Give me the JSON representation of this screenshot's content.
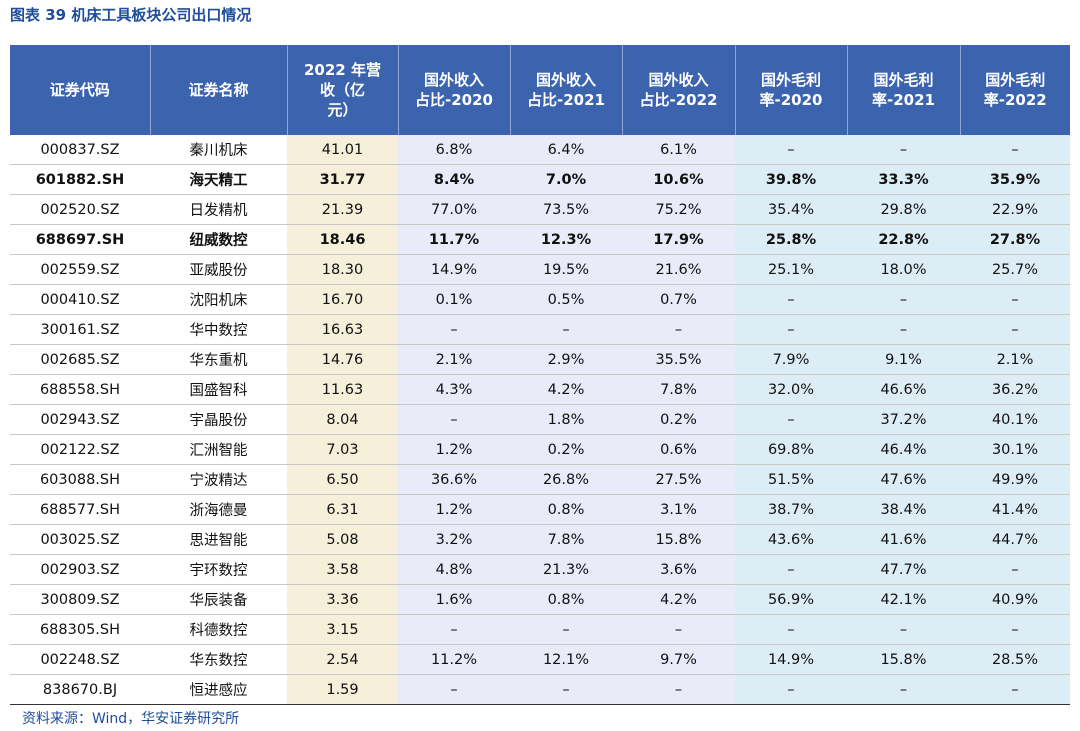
{
  "title": "图表 39  机床工具板块公司出口情况",
  "table": {
    "header": [
      [
        "证券代码"
      ],
      [
        "证券名称"
      ],
      [
        "2022 年营",
        "收（亿",
        "元）"
      ],
      [
        "国外收入",
        "占比-2020"
      ],
      [
        "国外收入",
        "占比-2021"
      ],
      [
        "国外收入",
        "占比-2022"
      ],
      [
        "国外毛利",
        "率-2020"
      ],
      [
        "国外毛利",
        "率-2021"
      ],
      [
        "国外毛利",
        "率-2022"
      ]
    ],
    "rows": [
      {
        "bold": false,
        "cells": [
          "000837.SZ",
          "秦川机床",
          "41.01",
          "6.8%",
          "6.4%",
          "6.1%",
          "–",
          "–",
          "–"
        ]
      },
      {
        "bold": true,
        "cells": [
          "601882.SH",
          "海天精工",
          "31.77",
          "8.4%",
          "7.0%",
          "10.6%",
          "39.8%",
          "33.3%",
          "35.9%"
        ]
      },
      {
        "bold": false,
        "cells": [
          "002520.SZ",
          "日发精机",
          "21.39",
          "77.0%",
          "73.5%",
          "75.2%",
          "35.4%",
          "29.8%",
          "22.9%"
        ]
      },
      {
        "bold": true,
        "cells": [
          "688697.SH",
          "纽威数控",
          "18.46",
          "11.7%",
          "12.3%",
          "17.9%",
          "25.8%",
          "22.8%",
          "27.8%"
        ]
      },
      {
        "bold": false,
        "cells": [
          "002559.SZ",
          "亚威股份",
          "18.30",
          "14.9%",
          "19.5%",
          "21.6%",
          "25.1%",
          "18.0%",
          "25.7%"
        ]
      },
      {
        "bold": false,
        "cells": [
          "000410.SZ",
          "沈阳机床",
          "16.70",
          "0.1%",
          "0.5%",
          "0.7%",
          "–",
          "–",
          "–"
        ]
      },
      {
        "bold": false,
        "cells": [
          "300161.SZ",
          "华中数控",
          "16.63",
          "–",
          "–",
          "–",
          "–",
          "–",
          "–"
        ]
      },
      {
        "bold": false,
        "cells": [
          "002685.SZ",
          "华东重机",
          "14.76",
          "2.1%",
          "2.9%",
          "35.5%",
          "7.9%",
          "9.1%",
          "2.1%"
        ]
      },
      {
        "bold": false,
        "cells": [
          "688558.SH",
          "国盛智科",
          "11.63",
          "4.3%",
          "4.2%",
          "7.8%",
          "32.0%",
          "46.6%",
          "36.2%"
        ]
      },
      {
        "bold": false,
        "cells": [
          "002943.SZ",
          "宇晶股份",
          "8.04",
          "–",
          "1.8%",
          "0.2%",
          "–",
          "37.2%",
          "40.1%"
        ]
      },
      {
        "bold": false,
        "cells": [
          "002122.SZ",
          "汇洲智能",
          "7.03",
          "1.2%",
          "0.2%",
          "0.6%",
          "69.8%",
          "46.4%",
          "30.1%"
        ]
      },
      {
        "bold": false,
        "cells": [
          "603088.SH",
          "宁波精达",
          "6.50",
          "36.6%",
          "26.8%",
          "27.5%",
          "51.5%",
          "47.6%",
          "49.9%"
        ]
      },
      {
        "bold": false,
        "cells": [
          "688577.SH",
          "浙海德曼",
          "6.31",
          "1.2%",
          "0.8%",
          "3.1%",
          "38.7%",
          "38.4%",
          "41.4%"
        ]
      },
      {
        "bold": false,
        "cells": [
          "003025.SZ",
          "思进智能",
          "5.08",
          "3.2%",
          "7.8%",
          "15.8%",
          "43.6%",
          "41.6%",
          "44.7%"
        ]
      },
      {
        "bold": false,
        "cells": [
          "002903.SZ",
          "宇环数控",
          "3.58",
          "4.8%",
          "21.3%",
          "3.6%",
          "–",
          "47.7%",
          "–"
        ]
      },
      {
        "bold": false,
        "cells": [
          "300809.SZ",
          "华辰装备",
          "3.36",
          "1.6%",
          "0.8%",
          "4.2%",
          "56.9%",
          "42.1%",
          "40.9%"
        ]
      },
      {
        "bold": false,
        "cells": [
          "688305.SH",
          "科德数控",
          "3.15",
          "–",
          "–",
          "–",
          "–",
          "–",
          "–"
        ]
      },
      {
        "bold": false,
        "cells": [
          "002248.SZ",
          "华东数控",
          "2.54",
          "11.2%",
          "12.1%",
          "9.7%",
          "14.9%",
          "15.8%",
          "28.5%"
        ]
      },
      {
        "bold": false,
        "cells": [
          "838670.BJ",
          "恒进感应",
          "1.59",
          "–",
          "–",
          "–",
          "–",
          "–",
          "–"
        ]
      }
    ]
  },
  "source": "资料来源：Wind，华安证券研究所"
}
